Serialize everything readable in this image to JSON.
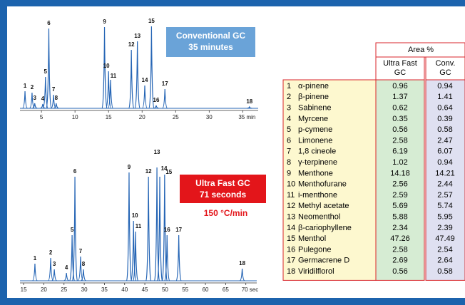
{
  "chart_data": [
    {
      "type": "chromatogram",
      "box_title": "Conventional GC",
      "box_subtitle": "35 minutes",
      "box_color": "#6aa3d8",
      "color": "#2565b5",
      "peaks": {
        "labels": [
          "1",
          "2",
          "3",
          "4",
          "5",
          "6",
          "7",
          "8",
          "9",
          "10",
          "11",
          "12",
          "13",
          "14",
          "15",
          "16",
          "17",
          "18"
        ],
        "x": [
          2.55,
          3.6,
          4.0,
          5.2,
          5.6,
          6.1,
          6.8,
          7.2,
          14.4,
          15.0,
          15.3,
          18.4,
          19.3,
          20.4,
          21.4,
          22.1,
          23.4,
          36.0
        ],
        "values": [
          25,
          23,
          8,
          7,
          45,
          113,
          20,
          8,
          115,
          53,
          41,
          83,
          95,
          33,
          116,
          5,
          28,
          3
        ]
      },
      "xlim": [
        1.8,
        37.3
      ],
      "xticks": [
        5,
        10,
        15,
        20,
        25,
        30,
        {
          "value": 35,
          "label": "35 min"
        }
      ],
      "ylim": [
        0,
        120
      ]
    },
    {
      "type": "chromatogram",
      "box_title": "Ultra Fast GC",
      "box_subtitle": "71 seconds",
      "box_color": "#e3151a",
      "note": "150 °C/min",
      "color": "#2565b5",
      "peaks": {
        "labels": [
          "1",
          "2",
          "3",
          "4",
          "5",
          "6",
          "7",
          "8",
          "9",
          "10",
          "11",
          "12",
          "13",
          "14",
          "15",
          "16",
          "17",
          "18"
        ],
        "x": [
          17.8,
          21.7,
          22.6,
          25.6,
          27.0,
          27.7,
          29.1,
          29.8,
          41.1,
          42.2,
          42.7,
          45.9,
          48.0,
          48.7,
          49.9,
          50.5,
          53.4,
          69.1
        ],
        "values": [
          25,
          33,
          17,
          12,
          65,
          147,
          35,
          17,
          153,
          85,
          70,
          147,
          160,
          147,
          150,
          65,
          65,
          18
        ]
      },
      "xlim": [
        14.1,
        72.7
      ],
      "xticks": [
        15,
        20,
        25,
        30,
        35,
        40,
        45,
        50,
        55,
        60,
        65,
        {
          "value": 70,
          "label": "70 sec"
        }
      ],
      "ylim": [
        0,
        165
      ]
    }
  ],
  "table": {
    "header": "Area %",
    "columns": [
      [
        "Ultra Fast",
        "GC"
      ],
      [
        "Conv.",
        "GC"
      ]
    ],
    "rows": [
      [
        1,
        "α-pinene",
        0.96,
        0.94
      ],
      [
        2,
        "β-pinene",
        1.37,
        1.41
      ],
      [
        3,
        "Sabinene",
        0.62,
        0.64
      ],
      [
        4,
        "Myrcene",
        0.35,
        0.39
      ],
      [
        5,
        "p-cymene",
        0.56,
        0.58
      ],
      [
        6,
        "Limonene",
        2.58,
        2.47
      ],
      [
        7,
        "1,8 cineole",
        6.19,
        6.07
      ],
      [
        8,
        "γ-terpinene",
        1.02,
        0.94
      ],
      [
        9,
        "Menthone",
        14.18,
        14.21
      ],
      [
        10,
        "Menthofurane",
        2.56,
        2.44
      ],
      [
        11,
        "i-menthone",
        2.59,
        2.57
      ],
      [
        12,
        "Methyl acetate",
        5.69,
        5.74
      ],
      [
        13,
        "Neomenthol",
        5.88,
        5.95
      ],
      [
        14,
        "β-cariophyllene",
        2.34,
        2.39
      ],
      [
        15,
        "Menthol",
        47.26,
        47.49
      ],
      [
        16,
        "Pulegone",
        2.58,
        2.54
      ],
      [
        17,
        "Germacrene D",
        2.69,
        2.64
      ],
      [
        18,
        "Viridilflorol",
        0.56,
        0.58
      ]
    ]
  }
}
